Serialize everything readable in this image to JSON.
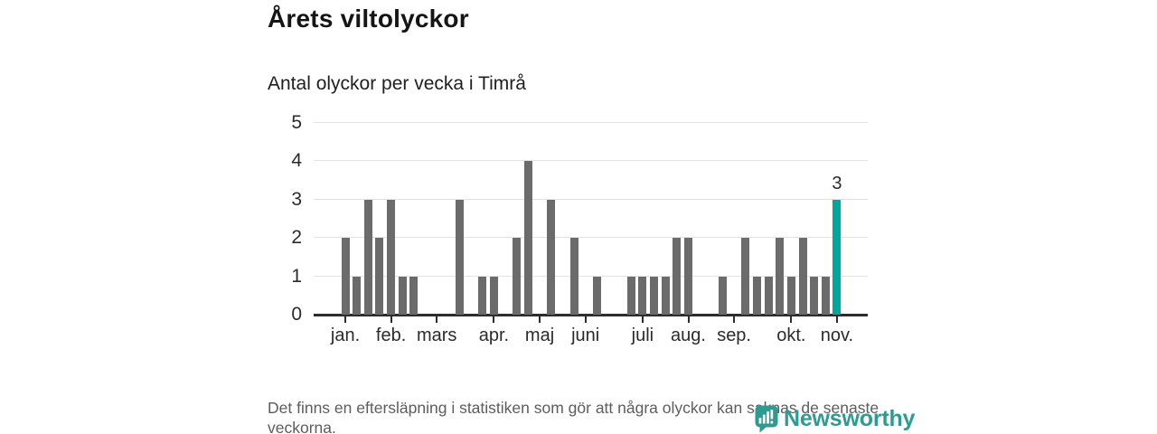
{
  "header": {
    "title": "Årets viltolyckor",
    "subtitle": "Antal olyckor per vecka i Timrå"
  },
  "chart_data": {
    "type": "bar",
    "title": "Årets viltolyckor",
    "subtitle": "Antal olyckor per vecka i Timrå",
    "x_unit": "vecka (week of year)",
    "n_weeks": 44,
    "values": [
      2,
      1,
      3,
      2,
      3,
      1,
      1,
      0,
      0,
      0,
      3,
      0,
      1,
      1,
      0,
      2,
      4,
      0,
      3,
      0,
      2,
      0,
      1,
      0,
      0,
      1,
      1,
      1,
      1,
      2,
      2,
      0,
      0,
      1,
      0,
      2,
      1,
      1,
      2,
      1,
      2,
      1,
      1,
      3
    ],
    "month_ticks": [
      {
        "label": "jan.",
        "week": 1
      },
      {
        "label": "feb.",
        "week": 5
      },
      {
        "label": "mars",
        "week": 9
      },
      {
        "label": "apr.",
        "week": 14
      },
      {
        "label": "maj",
        "week": 18
      },
      {
        "label": "juni",
        "week": 22
      },
      {
        "label": "juli",
        "week": 27
      },
      {
        "label": "aug.",
        "week": 31
      },
      {
        "label": "sep.",
        "week": 35
      },
      {
        "label": "okt.",
        "week": 40
      },
      {
        "label": "nov.",
        "week": 44
      }
    ],
    "ylim": [
      0,
      5
    ],
    "yticks": [
      0,
      1,
      2,
      3,
      4,
      5
    ],
    "grid": true,
    "legend": "none",
    "bar_color": "#6b6b6b",
    "highlight": {
      "week": 44,
      "value": 3,
      "label": "3",
      "color": "#00a79b"
    }
  },
  "footer": {
    "note": "Det finns en eftersläpning i statistiken som gör att några olyckor kan saknas de senaste veckorna.",
    "brand": "Newsworthy",
    "brand_color": "#2e9b93"
  }
}
